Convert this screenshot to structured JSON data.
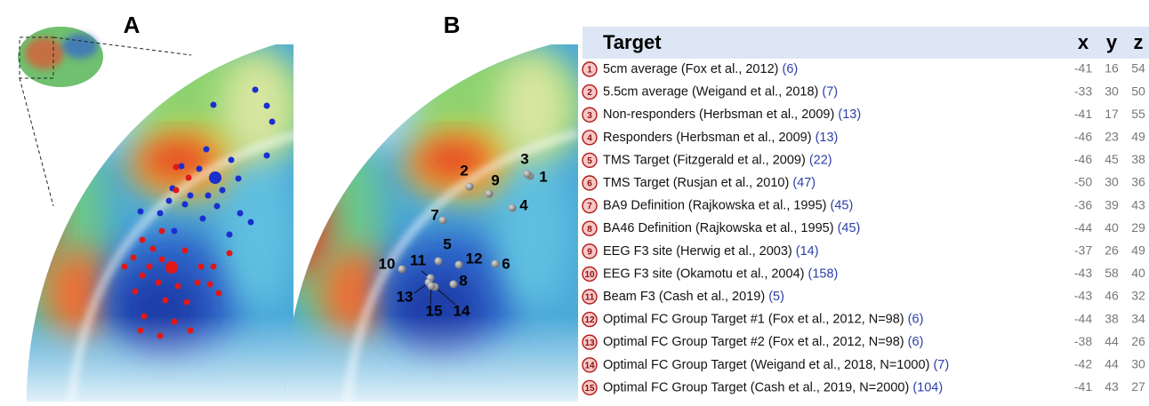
{
  "panels": {
    "a": "A",
    "b": "B"
  },
  "table": {
    "headers": [
      "Target",
      "x",
      "y",
      "z"
    ],
    "rows": [
      {
        "num": "1",
        "target": "5cm average (Fox et al., 2012)",
        "ref": "(6)",
        "x": -41,
        "y": 16,
        "z": 54
      },
      {
        "num": "2",
        "target": "5.5cm average (Weigand et al., 2018)",
        "ref": "(7)",
        "x": -33,
        "y": 30,
        "z": 50
      },
      {
        "num": "3",
        "target": "Non-responders (Herbsman et al., 2009)",
        "ref": "(13)",
        "x": -41,
        "y": 17,
        "z": 55
      },
      {
        "num": "4",
        "target": "Responders (Herbsman et al., 2009)",
        "ref": "(13)",
        "x": -46,
        "y": 23,
        "z": 49
      },
      {
        "num": "5",
        "target": "TMS Target (Fitzgerald et al., 2009)",
        "ref": "(22)",
        "x": -46,
        "y": 45,
        "z": 38
      },
      {
        "num": "6",
        "target": "TMS Target (Rusjan et al., 2010)",
        "ref": "(47)",
        "x": -50,
        "y": 30,
        "z": 36
      },
      {
        "num": "7",
        "target": "BA9 Definition (Rajkowska et al., 1995)",
        "ref": "(45)",
        "x": -36,
        "y": 39,
        "z": 43
      },
      {
        "num": "8",
        "target": "BA46 Definition (Rajkowska et al., 1995)",
        "ref": "(45)",
        "x": -44,
        "y": 40,
        "z": 29
      },
      {
        "num": "9",
        "target": "EEG F3 site (Herwig et al., 2003)",
        "ref": "(14)",
        "x": -37,
        "y": 26,
        "z": 49
      },
      {
        "num": "10",
        "target": "EEG F3 site (Okamotu et al., 2004)",
        "ref": "(158)",
        "x": -43,
        "y": 58,
        "z": 40
      },
      {
        "num": "11",
        "target": "Beam F3 (Cash et al., 2019)",
        "ref": "(5)",
        "x": -43,
        "y": 46,
        "z": 32
      },
      {
        "num": "12",
        "target": "Optimal FC Group Target #1 (Fox et al., 2012, N=98)",
        "ref": "(6)",
        "x": -44,
        "y": 38,
        "z": 34
      },
      {
        "num": "13",
        "target": "Optimal FC Group Target #2 (Fox et al., 2012, N=98)",
        "ref": "(6)",
        "x": -38,
        "y": 44,
        "z": 26
      },
      {
        "num": "14",
        "target": "Optimal FC Group Target (Weigand et al., 2018, N=1000)",
        "ref": "(7)",
        "x": -42,
        "y": 44,
        "z": 30
      },
      {
        "num": "15",
        "target": "Optimal FC Group Target (Cash et al., 2019, N=2000)",
        "ref": "(104)",
        "x": -41,
        "y": 43,
        "z": 27
      }
    ]
  },
  "panel_b_labels": [
    "1",
    "2",
    "3",
    "4",
    "5",
    "6",
    "7",
    "8",
    "9",
    "10",
    "11",
    "12",
    "13",
    "14",
    "15"
  ]
}
